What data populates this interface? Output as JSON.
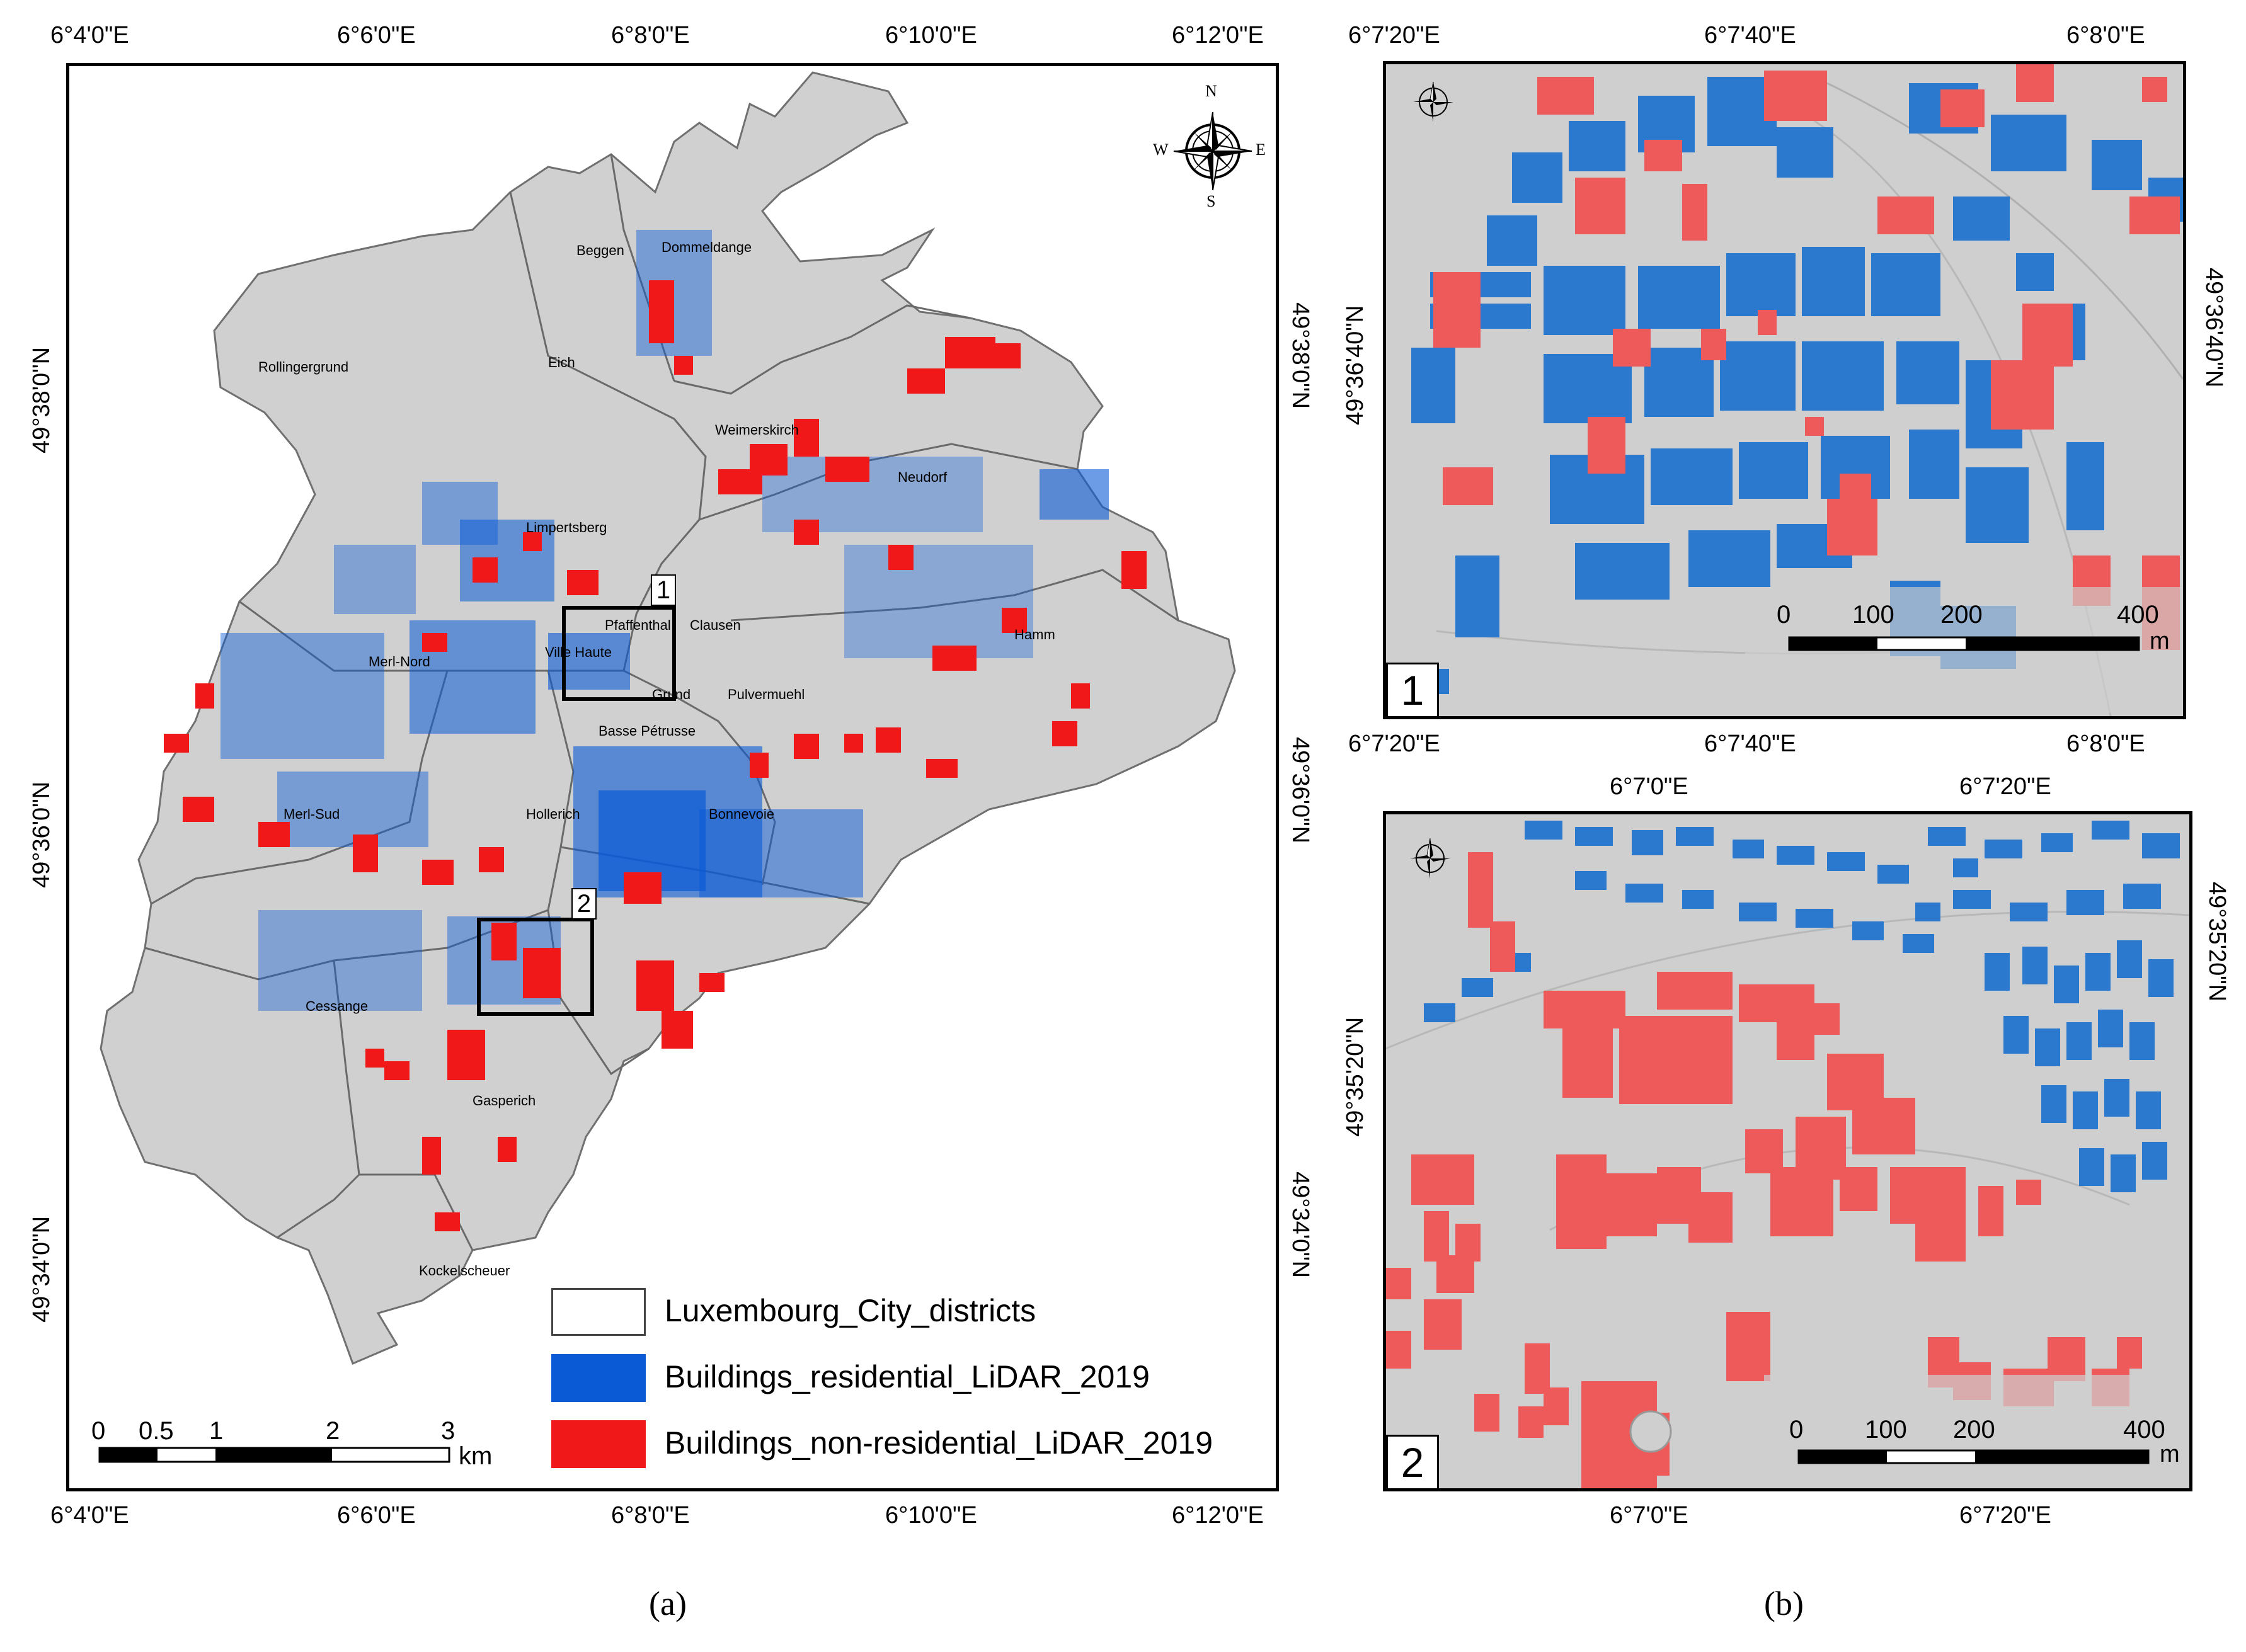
{
  "panel_a": {
    "top_ticks": [
      "6°4'0\"E",
      "6°6'0\"E",
      "6°8'0\"E",
      "6°10'0\"E",
      "6°12'0\"E"
    ],
    "bottom_ticks": [
      "6°4'0\"E",
      "6°6'0\"E",
      "6°8'0\"E",
      "6°10'0\"E",
      "6°12'0\"E"
    ],
    "left_ticks": [
      "49°38'0\"N",
      "49°36'0\"N",
      "49°34'0\"N"
    ],
    "right_ticks": [
      "49°38'0\"N",
      "49°36'0\"N",
      "49°34'0\"N"
    ],
    "districts": [
      "Beggen",
      "Dommeldange",
      "Rollingergrund",
      "Eich",
      "Weimerskirch",
      "Neudorf",
      "Limpertsberg",
      "Pfaffenthal",
      "Clausen",
      "Ville Haute",
      "Hamm",
      "Merl-Nord",
      "Grund",
      "Pulvermuehl",
      "Basse Pétrusse",
      "Merl-Sud",
      "Hollerich",
      "Bonnevoie",
      "Cessange",
      "Gasperich",
      "Kockelscheuer"
    ],
    "inset_labels": [
      "1",
      "2"
    ],
    "compass": {
      "n": "N",
      "s": "S",
      "e": "E",
      "w": "W"
    },
    "legend": [
      {
        "label": "Luxembourg_City_districts",
        "color": "#ffffff"
      },
      {
        "label": "Buildings_residential_LiDAR_2019",
        "color": "#0a5ad6"
      },
      {
        "label": "Buildings_non-residential_LiDAR_2019",
        "color": "#f01818"
      }
    ],
    "scalebar": {
      "ticks": [
        "0",
        "0.5",
        "1",
        "2",
        "3"
      ],
      "unit": "km"
    },
    "caption": "(a)"
  },
  "panel_b1": {
    "top_ticks": [
      "6°7'20\"E",
      "6°7'40\"E",
      "6°8'0\"E"
    ],
    "bottom_ticks": [
      "6°7'20\"E",
      "6°7'40\"E",
      "6°8'0\"E"
    ],
    "left_tick": "49°36'40\"N",
    "right_tick": "49°36'40\"N",
    "number": "1",
    "scalebar": {
      "ticks": [
        "0",
        "100",
        "200",
        "400"
      ],
      "unit": "m"
    }
  },
  "panel_b2": {
    "top_ticks": [
      "6°7'0\"E",
      "6°7'20\"E"
    ],
    "bottom_ticks": [
      "6°7'0\"E",
      "6°7'20\"E"
    ],
    "left_tick": "49°35'20\"N",
    "right_tick": "49°35'20\"N",
    "number": "2",
    "scalebar": {
      "ticks": [
        "0",
        "100",
        "200",
        "400"
      ],
      "unit": "m"
    }
  },
  "caption_b": "(b)",
  "colors": {
    "residential": "#0a5ad6",
    "non_residential": "#f01818",
    "inset_res": "#2a79cf",
    "inset_nonres": "#ee5a5a",
    "ground": "#cfcfcf"
  }
}
